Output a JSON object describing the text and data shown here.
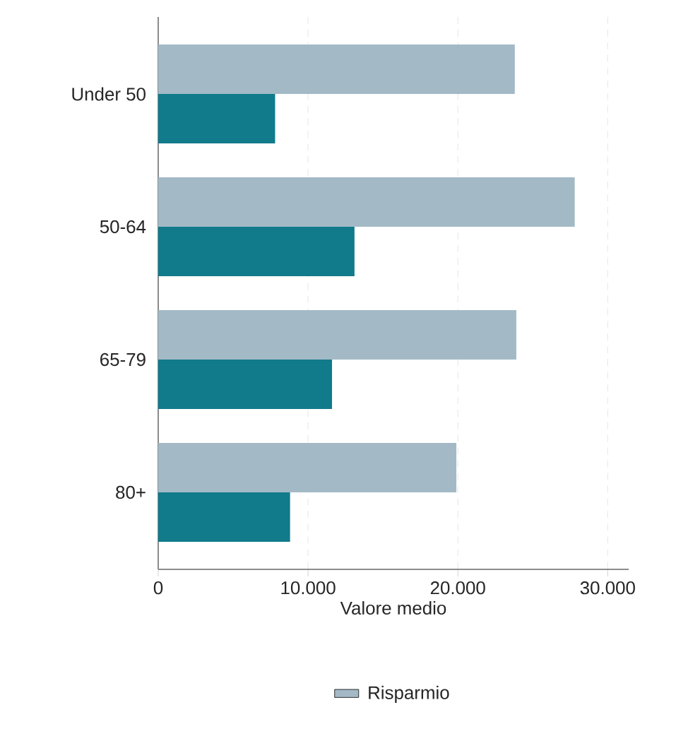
{
  "chart_data": {
    "type": "bar",
    "orientation": "horizontal",
    "xlabel": "Valore medio",
    "categories": [
      "Under 50",
      "50-64",
      "65-79",
      "80+"
    ],
    "series": [
      {
        "color": "#117a8b",
        "values": [
          7800,
          13100,
          11600,
          8800
        ]
      },
      {
        "name": "Risparmio",
        "color": "#a3bac6",
        "values": [
          23800,
          27800,
          23900,
          19900
        ]
      }
    ],
    "xlim": [
      0,
      31400
    ],
    "xticks": [
      0,
      {
        "value": 10000,
        "label": "10.000"
      },
      {
        "value": 20000,
        "label": "20.000"
      },
      {
        "value": 30000,
        "label": "30.000"
      }
    ],
    "grid": "x",
    "legend": "bottom"
  }
}
